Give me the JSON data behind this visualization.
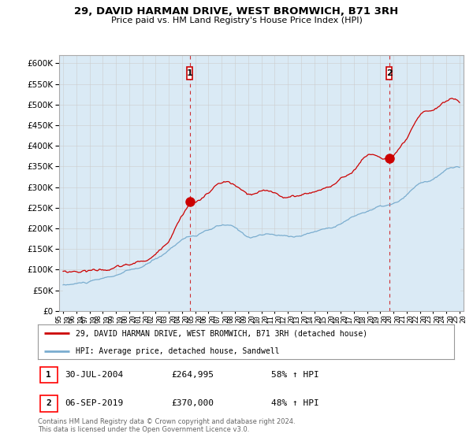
{
  "title": "29, DAVID HARMAN DRIVE, WEST BROMWICH, B71 3RH",
  "subtitle": "Price paid vs. HM Land Registry's House Price Index (HPI)",
  "ylim": [
    0,
    620000
  ],
  "ytick_vals": [
    0,
    50000,
    100000,
    150000,
    200000,
    250000,
    300000,
    350000,
    400000,
    450000,
    500000,
    550000,
    600000
  ],
  "red_line_color": "#cc0000",
  "blue_line_color": "#7aadcf",
  "blue_fill_color": "#daeaf5",
  "sale1_x": 2004.58,
  "sale1_y": 264995,
  "sale2_x": 2019.68,
  "sale2_y": 370000,
  "sale1_label": "1",
  "sale2_label": "2",
  "legend_red": "29, DAVID HARMAN DRIVE, WEST BROMWICH, B71 3RH (detached house)",
  "legend_blue": "HPI: Average price, detached house, Sandwell",
  "annotation1_date": "30-JUL-2004",
  "annotation1_price": "£264,995",
  "annotation1_hpi": "58% ↑ HPI",
  "annotation2_date": "06-SEP-2019",
  "annotation2_price": "£370,000",
  "annotation2_hpi": "48% ↑ HPI",
  "footnote": "Contains HM Land Registry data © Crown copyright and database right 2024.\nThis data is licensed under the Open Government Licence v3.0.",
  "background_color": "#ffffff",
  "grid_color": "#cccccc",
  "xlim_left": 1994.7,
  "xlim_right": 2025.3
}
